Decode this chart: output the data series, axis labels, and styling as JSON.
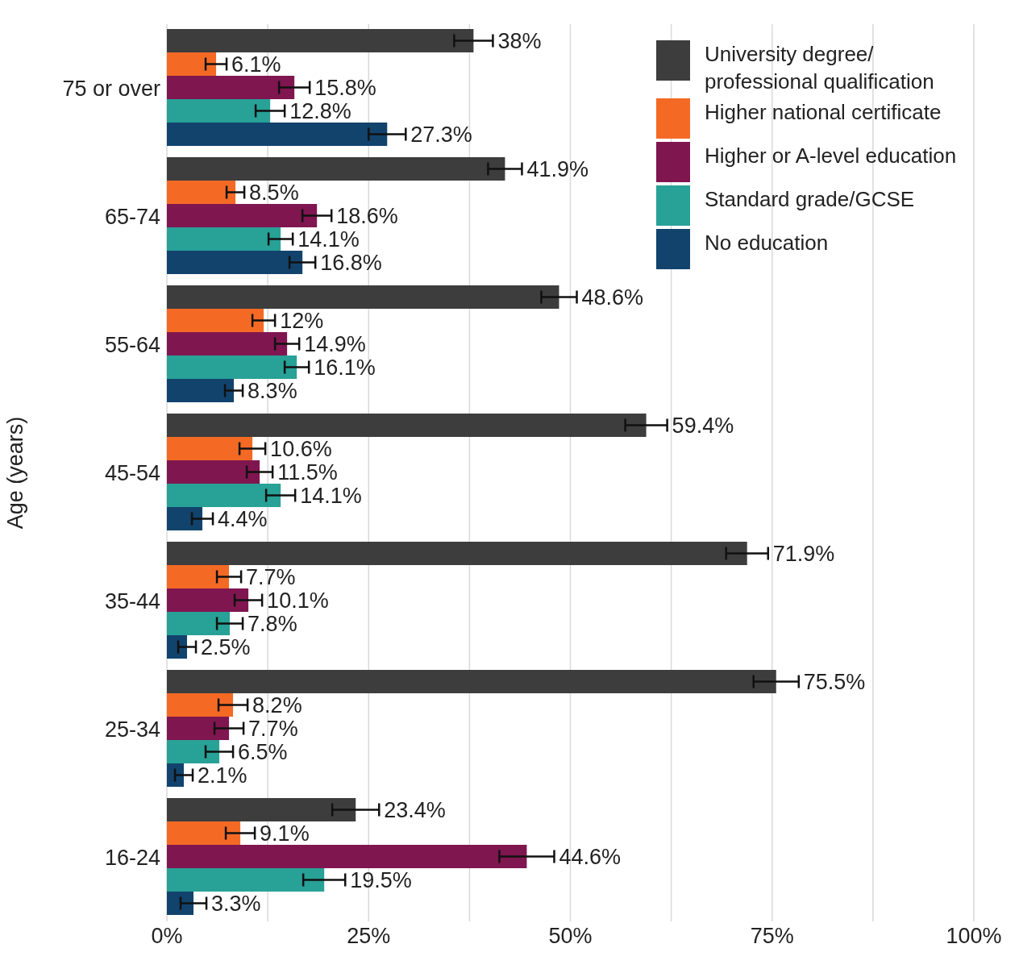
{
  "chart_data": {
    "type": "bar",
    "orientation": "horizontal",
    "ylabel": "Age (years)",
    "categories": [
      "75 or over",
      "65-74",
      "55-64",
      "45-54",
      "35-44",
      "25-34",
      "16-24"
    ],
    "series": [
      {
        "name": "University degree/ professional qualification",
        "color": "#3d3d3d",
        "values": [
          38,
          41.9,
          48.6,
          59.4,
          71.9,
          75.5,
          23.4
        ],
        "errors": [
          2.4,
          2.1,
          2.2,
          2.6,
          2.6,
          2.8,
          2.9
        ],
        "value_labels": [
          "38%",
          "41.9%",
          "48.6%",
          "59.4%",
          "71.9%",
          "75.5%",
          "23.4%"
        ]
      },
      {
        "name": "Higher national certificate",
        "color": "#f46a25",
        "values": [
          6.1,
          8.5,
          12,
          10.6,
          7.7,
          8.2,
          9.1
        ],
        "errors": [
          1.3,
          1.1,
          1.4,
          1.6,
          1.5,
          1.8,
          1.8
        ],
        "value_labels": [
          "6.1%",
          "8.5%",
          "12%",
          "10.6%",
          "7.7%",
          "8.2%",
          "9.1%"
        ]
      },
      {
        "name": "Higher or A-level education",
        "color": "#801650",
        "values": [
          15.8,
          18.6,
          14.9,
          11.5,
          10.1,
          7.7,
          44.6
        ],
        "errors": [
          1.9,
          1.8,
          1.5,
          1.6,
          1.7,
          1.8,
          3.4
        ],
        "value_labels": [
          "15.8%",
          "18.6%",
          "14.9%",
          "11.5%",
          "10.1%",
          "7.7%",
          "44.6%"
        ]
      },
      {
        "name": "Standard grade/GCSE",
        "color": "#28a197",
        "values": [
          12.8,
          14.1,
          16.1,
          14.1,
          7.8,
          6.5,
          19.5
        ],
        "errors": [
          1.8,
          1.5,
          1.5,
          1.8,
          1.6,
          1.7,
          2.6
        ],
        "value_labels": [
          "12.8%",
          "14.1%",
          "16.1%",
          "14.1%",
          "7.8%",
          "6.5%",
          "19.5%"
        ]
      },
      {
        "name": "No education",
        "color": "#12436d",
        "values": [
          27.3,
          16.8,
          8.3,
          4.4,
          2.5,
          2.1,
          3.3
        ],
        "errors": [
          2.3,
          1.6,
          1.1,
          1.3,
          1.1,
          1.1,
          1.6
        ],
        "value_labels": [
          "27.3%",
          "16.8%",
          "8.3%",
          "4.4%",
          "2.5%",
          "2.1%",
          "3.3%"
        ]
      }
    ],
    "xlim": [
      0,
      100
    ],
    "xticks": [
      {
        "value": 0,
        "label": "0%"
      },
      {
        "value": 12.5,
        "label": null
      },
      {
        "value": 25,
        "label": "25%"
      },
      {
        "value": 37.5,
        "label": null
      },
      {
        "value": 50,
        "label": "50%"
      },
      {
        "value": 62.5,
        "label": null
      },
      {
        "value": 75,
        "label": "75%"
      },
      {
        "value": 87.5,
        "label": null
      },
      {
        "value": 100,
        "label": "100%"
      }
    ],
    "grid": "x",
    "legend": "top right"
  }
}
